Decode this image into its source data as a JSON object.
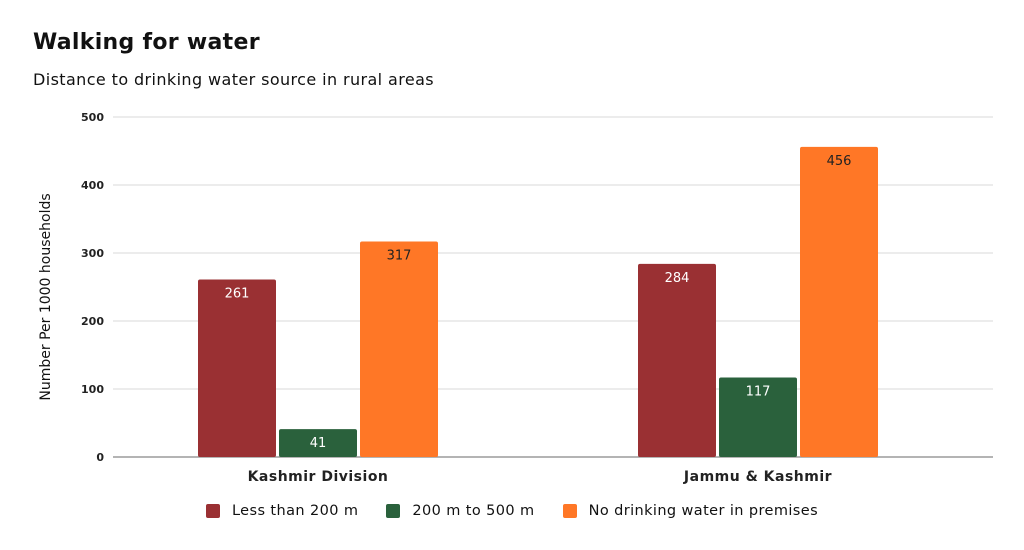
{
  "chart_data": {
    "type": "bar",
    "title": "Walking for water",
    "subtitle": "Distance to drinking water source in rural areas",
    "xlabel": "",
    "ylabel": "Number Per 1000 households",
    "ylim": [
      0,
      500
    ],
    "yticks": [
      0,
      100,
      200,
      300,
      400,
      500
    ],
    "grid": true,
    "legend_position": "bottom",
    "categories": [
      "Kashmir Division",
      "Jammu & Kashmir"
    ],
    "series": [
      {
        "name": "Less than 200 m",
        "color": "#9A3033",
        "label_color": "#ffffff",
        "values": [
          261,
          284
        ]
      },
      {
        "name": "200 m to 500 m",
        "color": "#2A613C",
        "label_color": "#ffffff",
        "values": [
          41,
          117
        ]
      },
      {
        "name": "No drinking water in premises",
        "color": "#FF7726",
        "label_color": "#222222",
        "values": [
          317,
          456
        ]
      }
    ]
  }
}
